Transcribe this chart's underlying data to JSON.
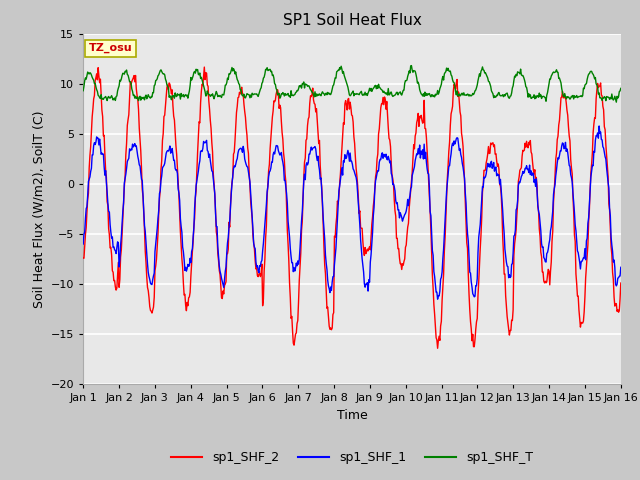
{
  "title": "SP1 Soil Heat Flux",
  "xlabel": "Time",
  "ylabel": "Soil Heat Flux (W/m2), SoilT (C)",
  "ylim": [
    -20,
    15
  ],
  "yticks": [
    -20,
    -15,
    -10,
    -5,
    0,
    5,
    10,
    15
  ],
  "xtick_labels": [
    "Jan 1",
    "Jan 2",
    "Jan 3",
    "Jan 4",
    "Jan 5",
    "Jan 6",
    "Jan 7",
    "Jan 8",
    "Jan 9",
    "Jan 10",
    "Jan 11",
    "Jan 12",
    "Jan 13",
    "Jan 14",
    "Jan 15",
    "Jan 16"
  ],
  "fig_bg_color": "#c8c8c8",
  "plot_bg_color": "#e8e8e8",
  "grid_color": "white",
  "color_shf2": "red",
  "color_shf1": "blue",
  "color_shft": "green",
  "tz_label": "TZ_osu",
  "title_fontsize": 11,
  "tick_fontsize": 8,
  "ylabel_fontsize": 9,
  "xlabel_fontsize": 9,
  "legend_fontsize": 9
}
